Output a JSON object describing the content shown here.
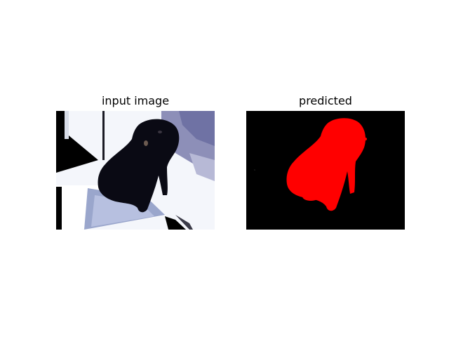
{
  "panels": [
    {
      "title": "input image"
    },
    {
      "title": "predicted"
    }
  ],
  "colors": {
    "background": "#ffffff",
    "prediction_fill": "#ff0000",
    "prediction_background": "#000000",
    "dog_silhouette": "#0a0a14"
  },
  "image_subject": "pug dog seated on a window ledge, with red segmentation mask"
}
